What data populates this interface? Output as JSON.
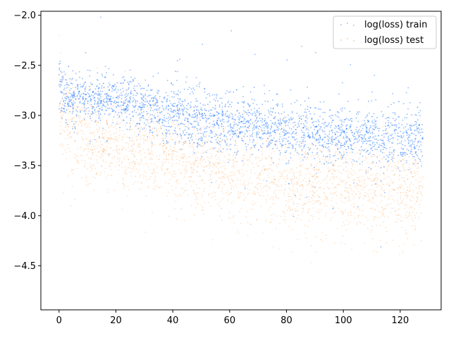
{
  "chart_data": {
    "type": "scatter",
    "title": "",
    "xlabel": "",
    "ylabel": "",
    "xlim": [
      -6.4,
      134.4
    ],
    "ylim": [
      -4.94,
      -1.96
    ],
    "xticks": [
      0,
      20,
      40,
      60,
      80,
      100,
      120
    ],
    "yticks": [
      -4.5,
      -4.0,
      -3.5,
      -3.0,
      -2.5,
      -2.0
    ],
    "xtick_labels": [
      "0",
      "20",
      "40",
      "60",
      "80",
      "100",
      "120"
    ],
    "ytick_labels": [
      "−4.5",
      "−4.0",
      "−3.5",
      "−3.0",
      "−2.5",
      "−2.0"
    ],
    "grid": false,
    "legend_position": "upper-right",
    "series": [
      {
        "name": "log(loss) train",
        "color": "#1f77ff",
        "trend": {
          "x": [
            0,
            1,
            5,
            10,
            20,
            25,
            30,
            40,
            60,
            80,
            100,
            120,
            128
          ],
          "y": [
            -2.6,
            -2.82,
            -2.85,
            -2.82,
            -2.85,
            -2.83,
            -2.92,
            -3.0,
            -3.08,
            -3.15,
            -3.2,
            -3.23,
            -3.25
          ]
        }
      },
      {
        "name": "log(loss) test",
        "color": "#ff7f0e",
        "trend": {
          "x": [
            0,
            5,
            10,
            20,
            30,
            40,
            60,
            80,
            100,
            120,
            128
          ],
          "y": [
            -2.85,
            -3.15,
            -3.25,
            -3.3,
            -3.35,
            -3.45,
            -3.55,
            -3.65,
            -3.7,
            -3.75,
            -3.75
          ]
        }
      }
    ]
  }
}
